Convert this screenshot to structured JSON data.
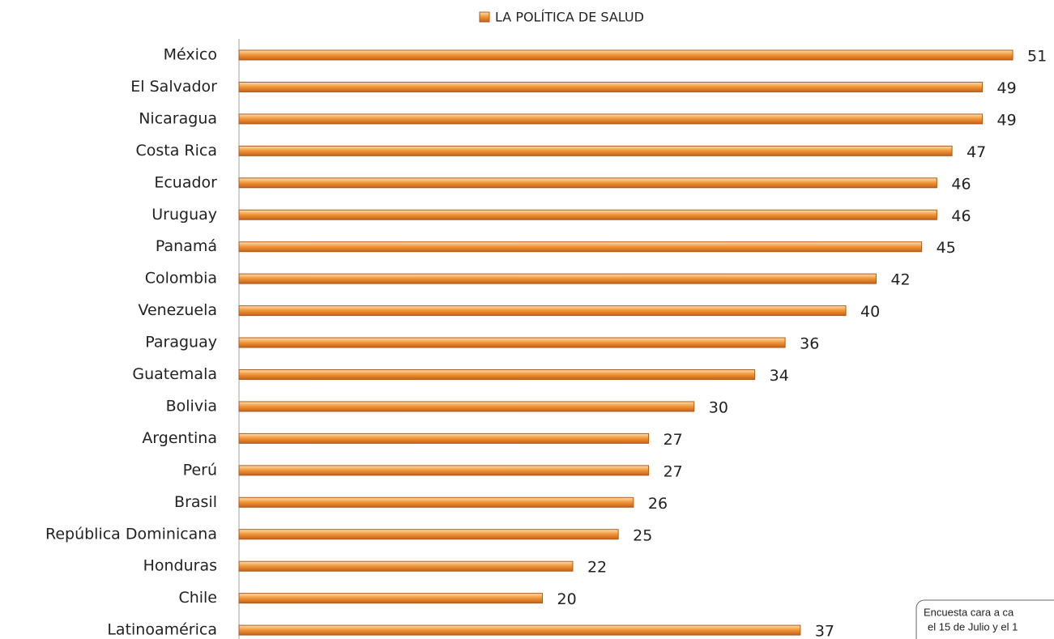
{
  "chart_data": {
    "type": "bar",
    "orientation": "horizontal",
    "legend": "LA POLÍTICA DE SALUD",
    "legend_position": "top",
    "color": "#f0963a",
    "categories": [
      "México",
      "El Salvador",
      "Nicaragua",
      "Costa Rica",
      "Ecuador",
      "Uruguay",
      "Panamá",
      "Colombia",
      "Venezuela",
      "Paraguay",
      "Guatemala",
      "Bolivia",
      "Argentina",
      "Perú",
      "Brasil",
      "República Dominicana",
      "Honduras",
      "Chile",
      "Latinoamérica"
    ],
    "values": [
      51,
      49,
      49,
      47,
      46,
      46,
      45,
      42,
      40,
      36,
      34,
      30,
      27,
      27,
      26,
      25,
      22,
      20,
      37
    ],
    "annotation": [
      "Encuesta cara a ca",
      "el 15 de Julio y el 1"
    ]
  }
}
